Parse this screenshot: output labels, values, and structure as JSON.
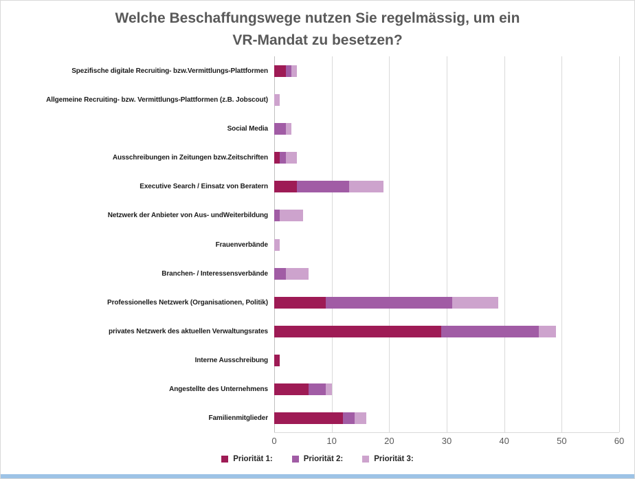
{
  "chart_data": {
    "type": "bar",
    "orientation": "horizontal",
    "stacked": true,
    "title": "Welche Beschaffungswege nutzen Sie regelmässig, um ein\nVR-Mandat zu besetzen?",
    "categories": [
      "Spezifische digitale Recruiting- bzw.Vermittlungs-Plattformen",
      "Allgemeine Recruiting- bzw. Vermittlungs-Plattformen (z.B. Jobscout)",
      "Social Media",
      "Ausschreibungen in Zeitungen bzw.Zeitschriften",
      "Executive Search / Einsatz von Beratern",
      "Netzwerk der Anbieter von Aus- undWeiterbildung",
      "Frauenverbände",
      "Branchen- / Interessensverbände",
      "Professionelles Netzwerk (Organisationen, Politik)",
      "privates Netzwerk des aktuellen Verwaltungsrates",
      "Interne Ausschreibung",
      "Angestellte des Unternehmens",
      "Familienmitglieder"
    ],
    "series": [
      {
        "name": "Priorität 1:",
        "color": "#9e1b55",
        "values": [
          2,
          0,
          0,
          1,
          4,
          0,
          0,
          0,
          9,
          29,
          1,
          6,
          12
        ]
      },
      {
        "name": "Priorität 2:",
        "color": "#a15ca5",
        "values": [
          1,
          0,
          2,
          1,
          9,
          1,
          0,
          2,
          22,
          17,
          0,
          3,
          2
        ]
      },
      {
        "name": "Priorität 3:",
        "color": "#cda3cd",
        "values": [
          1,
          1,
          1,
          2,
          6,
          4,
          1,
          4,
          8,
          3,
          0,
          1,
          2
        ]
      }
    ],
    "xlim": [
      0,
      60
    ],
    "xticks": [
      0,
      10,
      20,
      30,
      40,
      50,
      60
    ],
    "xlabel": "",
    "ylabel": "",
    "grid": "vertical",
    "legend_position": "bottom"
  },
  "colors": {
    "title_text": "#595959",
    "axis_text": "#595959",
    "gridline": "#d9d9d9",
    "axis_line": "#bfbfbf",
    "frame_border": "#d9d9d9",
    "bottom_accent": "#9dc3e6"
  }
}
